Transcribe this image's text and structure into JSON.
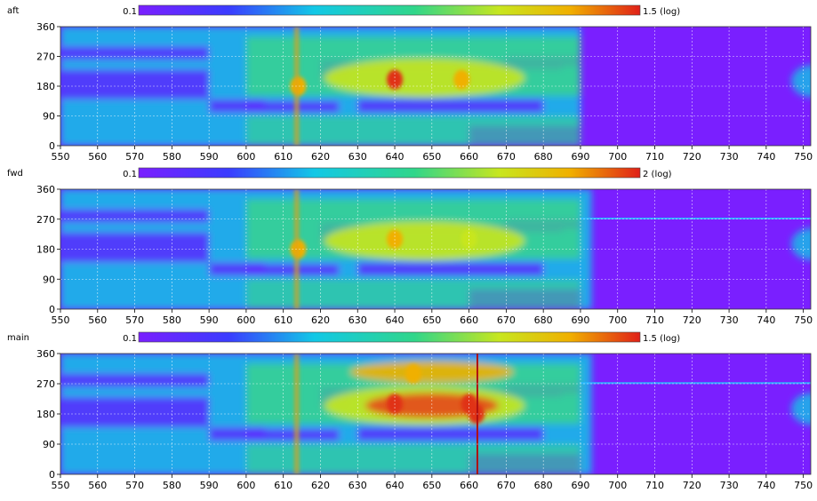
{
  "chart_data": [
    {
      "type": "heatmap",
      "panel_label": "aft",
      "x_ticks": [
        550,
        560,
        570,
        580,
        590,
        600,
        610,
        620,
        630,
        640,
        650,
        660,
        670,
        680,
        690,
        700,
        710,
        720,
        730,
        740,
        750
      ],
      "y_ticks": [
        0,
        90,
        180,
        270,
        360
      ],
      "xlim": [
        550,
        752
      ],
      "ylim": [
        0,
        360
      ],
      "colorbar": {
        "min_label": "0.1",
        "max_label": "1.5 (log)",
        "scale": "log"
      },
      "grid": true,
      "hotspots": [
        {
          "x": 640,
          "y": 200,
          "level": 0.95
        },
        {
          "x": 658,
          "y": 200,
          "level": 0.8
        },
        {
          "x": 614,
          "y": 180,
          "level": 0.85
        }
      ]
    },
    {
      "type": "heatmap",
      "panel_label": "fwd",
      "x_ticks": [
        550,
        560,
        570,
        580,
        590,
        600,
        610,
        620,
        630,
        640,
        650,
        660,
        670,
        680,
        690,
        700,
        710,
        720,
        730,
        740,
        750
      ],
      "y_ticks": [
        0,
        90,
        180,
        270,
        360
      ],
      "xlim": [
        550,
        752
      ],
      "ylim": [
        0,
        360
      ],
      "colorbar": {
        "min_label": "0.1",
        "max_label": "2 (log)",
        "scale": "log"
      },
      "grid": true,
      "hotspots": [
        {
          "x": 640,
          "y": 210,
          "level": 0.85
        },
        {
          "x": 660,
          "y": 210,
          "level": 0.7
        },
        {
          "x": 614,
          "y": 180,
          "level": 0.85
        }
      ]
    },
    {
      "type": "heatmap",
      "panel_label": "main",
      "x_ticks": [
        550,
        560,
        570,
        580,
        590,
        600,
        610,
        620,
        630,
        640,
        650,
        660,
        670,
        680,
        690,
        700,
        710,
        720,
        730,
        740,
        750
      ],
      "y_ticks": [
        0,
        90,
        180,
        270,
        360
      ],
      "xlim": [
        550,
        752
      ],
      "ylim": [
        0,
        360
      ],
      "colorbar": {
        "min_label": "0.1",
        "max_label": "1.5 (log)",
        "scale": "log"
      },
      "grid": true,
      "hotspots": [
        {
          "x": 640,
          "y": 210,
          "level": 1.0
        },
        {
          "x": 660,
          "y": 210,
          "level": 0.95
        },
        {
          "x": 645,
          "y": 300,
          "level": 0.85
        },
        {
          "x": 662,
          "y": 180,
          "level": 1.0
        }
      ]
    }
  ],
  "colors": {
    "low": "#7a1fff",
    "ramp": [
      "#7a1fff",
      "#2a4bff",
      "#12c8e6",
      "#30d68a",
      "#c8e61e",
      "#f0b000",
      "#e03018"
    ],
    "grid": "#ffffff",
    "text": "#000000"
  }
}
